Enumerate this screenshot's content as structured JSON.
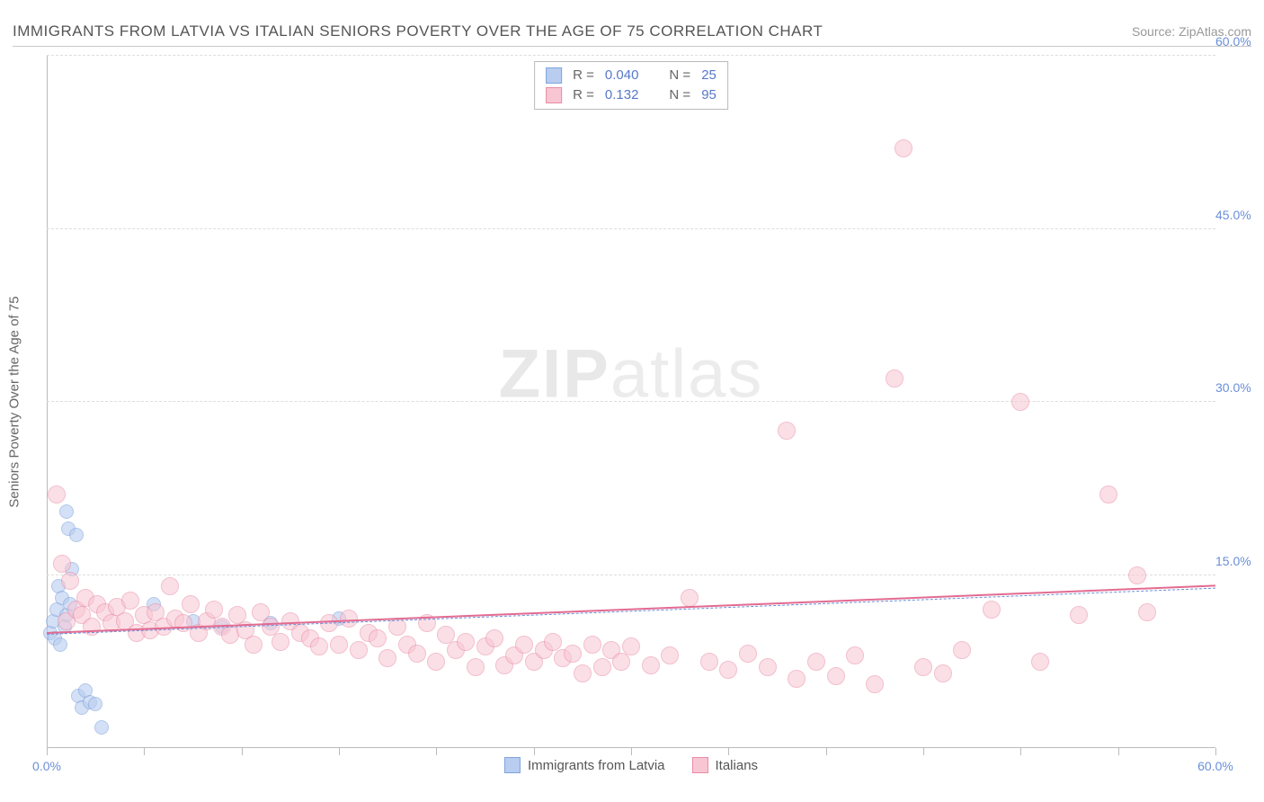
{
  "title": "IMMIGRANTS FROM LATVIA VS ITALIAN SENIORS POVERTY OVER THE AGE OF 75 CORRELATION CHART",
  "source": "Source: ZipAtlas.com",
  "watermark_zip": "ZIP",
  "watermark_atlas": "atlas",
  "chart": {
    "type": "scatter",
    "xlim": [
      0,
      60
    ],
    "ylim": [
      0,
      60
    ],
    "x_ticks": [
      0,
      5,
      10,
      15,
      20,
      25,
      30,
      35,
      40,
      45,
      50,
      55,
      60
    ],
    "x_tick_labels": {
      "0": "0.0%",
      "60": "60.0%"
    },
    "y_gridlines": [
      15,
      30,
      45,
      60
    ],
    "y_tick_labels": {
      "15": "15.0%",
      "30": "30.0%",
      "45": "45.0%",
      "60": "60.0%"
    },
    "y_axis_label": "Seniors Poverty Over the Age of 75",
    "background_color": "#ffffff",
    "grid_color": "#dddddd",
    "axis_color": "#bbbbbb",
    "tick_label_color": "#6a8fd8",
    "series": [
      {
        "name": "Immigrants from Latvia",
        "fill_color": "#b8cdf0",
        "stroke_color": "#7fa4dd",
        "fill_opacity": 0.6,
        "marker_radius": 8,
        "R": "0.040",
        "N": "25",
        "trend": {
          "y_at_x0": 9.8,
          "y_at_xmax": 13.8,
          "color": "#6a8fd8",
          "dash": true,
          "width": 1.5
        },
        "points": [
          [
            0.2,
            10
          ],
          [
            0.3,
            11
          ],
          [
            0.4,
            9.5
          ],
          [
            0.5,
            12
          ],
          [
            0.6,
            14
          ],
          [
            0.8,
            13
          ],
          [
            0.9,
            10.5
          ],
          [
            1.0,
            11.5
          ],
          [
            1.1,
            19
          ],
          [
            1.2,
            12.5
          ],
          [
            1.3,
            15.5
          ],
          [
            1.5,
            18.5
          ],
          [
            1.6,
            4.5
          ],
          [
            1.8,
            3.5
          ],
          [
            2.0,
            5
          ],
          [
            2.2,
            4
          ],
          [
            2.5,
            3.8
          ],
          [
            2.8,
            1.8
          ],
          [
            1.0,
            20.5
          ],
          [
            0.7,
            9
          ],
          [
            5.5,
            12.5
          ],
          [
            7.5,
            11
          ],
          [
            9.0,
            10.5
          ],
          [
            11.5,
            10.8
          ],
          [
            15.0,
            11.2
          ]
        ]
      },
      {
        "name": "Italians",
        "fill_color": "#f8c6d3",
        "stroke_color": "#e88ba6",
        "fill_opacity": 0.55,
        "marker_radius": 10,
        "R": "0.132",
        "N": "95",
        "trend": {
          "y_at_x0": 9.9,
          "y_at_xmax": 14.0,
          "color": "#e36b91",
          "dash": false,
          "width": 2
        },
        "points": [
          [
            0.5,
            22
          ],
          [
            0.8,
            16
          ],
          [
            1.0,
            11
          ],
          [
            1.2,
            14.5
          ],
          [
            1.5,
            12
          ],
          [
            1.8,
            11.5
          ],
          [
            2.0,
            13
          ],
          [
            2.3,
            10.5
          ],
          [
            2.6,
            12.5
          ],
          [
            3.0,
            11.8
          ],
          [
            3.3,
            10.8
          ],
          [
            3.6,
            12.2
          ],
          [
            4.0,
            11
          ],
          [
            4.3,
            12.8
          ],
          [
            4.6,
            10
          ],
          [
            5.0,
            11.5
          ],
          [
            5.3,
            10.2
          ],
          [
            5.6,
            11.8
          ],
          [
            6.0,
            10.5
          ],
          [
            6.3,
            14
          ],
          [
            6.6,
            11.2
          ],
          [
            7.0,
            10.8
          ],
          [
            7.4,
            12.5
          ],
          [
            7.8,
            10
          ],
          [
            8.2,
            11
          ],
          [
            8.6,
            12
          ],
          [
            9.0,
            10.5
          ],
          [
            9.4,
            9.8
          ],
          [
            9.8,
            11.5
          ],
          [
            10.2,
            10.2
          ],
          [
            10.6,
            9
          ],
          [
            11.0,
            11.8
          ],
          [
            11.5,
            10.5
          ],
          [
            12.0,
            9.2
          ],
          [
            12.5,
            11
          ],
          [
            13.0,
            10
          ],
          [
            13.5,
            9.5
          ],
          [
            14.0,
            8.8
          ],
          [
            14.5,
            10.8
          ],
          [
            15.0,
            9
          ],
          [
            15.5,
            11.2
          ],
          [
            16.0,
            8.5
          ],
          [
            16.5,
            10
          ],
          [
            17.0,
            9.5
          ],
          [
            17.5,
            7.8
          ],
          [
            18.0,
            10.5
          ],
          [
            18.5,
            9
          ],
          [
            19.0,
            8.2
          ],
          [
            19.5,
            10.8
          ],
          [
            20.0,
            7.5
          ],
          [
            20.5,
            9.8
          ],
          [
            21.0,
            8.5
          ],
          [
            21.5,
            9.2
          ],
          [
            22.0,
            7
          ],
          [
            22.5,
            8.8
          ],
          [
            23.0,
            9.5
          ],
          [
            23.5,
            7.2
          ],
          [
            24.0,
            8
          ],
          [
            24.5,
            9
          ],
          [
            25.0,
            7.5
          ],
          [
            25.5,
            8.5
          ],
          [
            26.0,
            9.2
          ],
          [
            26.5,
            7.8
          ],
          [
            27.0,
            8.2
          ],
          [
            27.5,
            6.5
          ],
          [
            28.0,
            9
          ],
          [
            28.5,
            7
          ],
          [
            29.0,
            8.5
          ],
          [
            29.5,
            7.5
          ],
          [
            30.0,
            8.8
          ],
          [
            31.0,
            7.2
          ],
          [
            32.0,
            8
          ],
          [
            33.0,
            13
          ],
          [
            34.0,
            7.5
          ],
          [
            35.0,
            6.8
          ],
          [
            36.0,
            8.2
          ],
          [
            37.0,
            7
          ],
          [
            38.0,
            27.5
          ],
          [
            38.5,
            6
          ],
          [
            39.5,
            7.5
          ],
          [
            40.5,
            6.2
          ],
          [
            41.5,
            8
          ],
          [
            42.5,
            5.5
          ],
          [
            43.5,
            32
          ],
          [
            44.0,
            52
          ],
          [
            45.0,
            7
          ],
          [
            46.0,
            6.5
          ],
          [
            47.0,
            8.5
          ],
          [
            48.5,
            12
          ],
          [
            50.0,
            30
          ],
          [
            51.0,
            7.5
          ],
          [
            53.0,
            11.5
          ],
          [
            54.5,
            22
          ],
          [
            56.0,
            15
          ],
          [
            56.5,
            11.8
          ]
        ]
      }
    ],
    "legend_bottom": [
      {
        "label": "Immigrants from Latvia",
        "fill": "#b8cdf0",
        "stroke": "#7fa4dd"
      },
      {
        "label": "Italians",
        "fill": "#f8c6d3",
        "stroke": "#e88ba6"
      }
    ],
    "legend_top": {
      "rows": [
        {
          "fill": "#b8cdf0",
          "stroke": "#7fa4dd",
          "R": "0.040",
          "N": "25"
        },
        {
          "fill": "#f8c6d3",
          "stroke": "#e88ba6",
          "R": "0.132",
          "N": "95"
        }
      ],
      "r_label": "R =",
      "n_label": "N ="
    }
  }
}
